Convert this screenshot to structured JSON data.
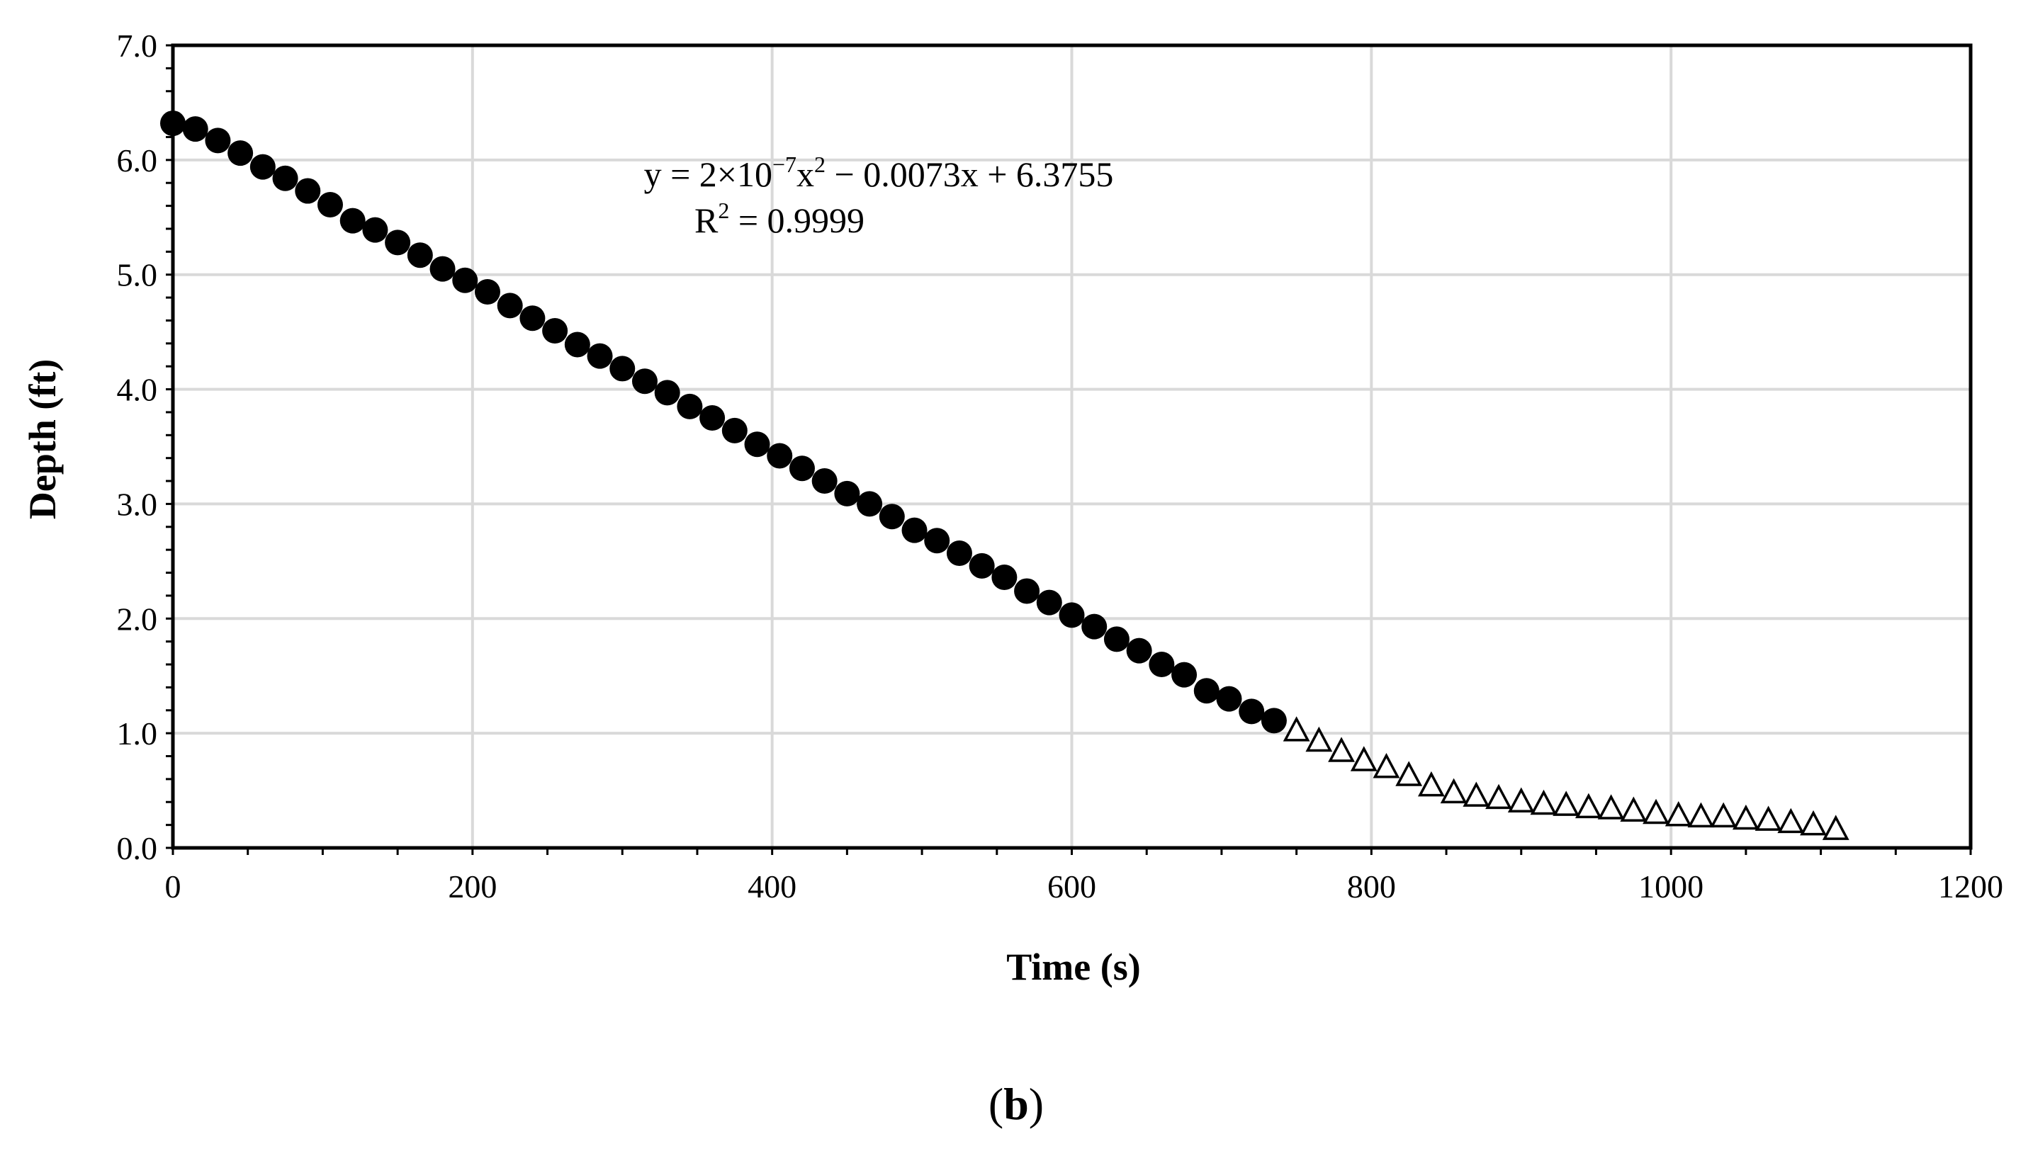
{
  "chart_data": {
    "type": "scatter",
    "xlabel": "Time (s)",
    "ylabel": "Depth (ft)",
    "xlim": [
      0,
      1200
    ],
    "ylim": [
      0,
      7
    ],
    "xticks": [
      "0",
      "200",
      "400",
      "600",
      "800",
      "1000",
      "1200"
    ],
    "yticks": [
      "0.0",
      "1.0",
      "2.0",
      "3.0",
      "4.0",
      "5.0",
      "6.0",
      "7.0"
    ],
    "grid": true,
    "legend": "none",
    "trendline_annotation": {
      "equation_prefix": "y = 2×10",
      "equation_exp": "−7",
      "equation_mid": "x",
      "equation_exp2": "2",
      "equation_suffix": " − 0.0073x + 6.3755",
      "r2_prefix": "R",
      "r2_exp": "2",
      "r2_suffix": " = 0.9999"
    },
    "series": [
      {
        "marker": "filled-circle",
        "color": "#000000",
        "points": [
          [
            0,
            6.32
          ],
          [
            15,
            6.27
          ],
          [
            30,
            6.17
          ],
          [
            45,
            6.06
          ],
          [
            60,
            5.94
          ],
          [
            75,
            5.84
          ],
          [
            90,
            5.73
          ],
          [
            105,
            5.61
          ],
          [
            120,
            5.47
          ],
          [
            135,
            5.39
          ],
          [
            150,
            5.28
          ],
          [
            165,
            5.17
          ],
          [
            180,
            5.05
          ],
          [
            195,
            4.95
          ],
          [
            210,
            4.85
          ],
          [
            225,
            4.73
          ],
          [
            240,
            4.62
          ],
          [
            255,
            4.51
          ],
          [
            270,
            4.39
          ],
          [
            285,
            4.29
          ],
          [
            300,
            4.18
          ],
          [
            315,
            4.07
          ],
          [
            330,
            3.97
          ],
          [
            345,
            3.85
          ],
          [
            360,
            3.75
          ],
          [
            375,
            3.64
          ],
          [
            390,
            3.52
          ],
          [
            405,
            3.42
          ],
          [
            420,
            3.31
          ],
          [
            435,
            3.2
          ],
          [
            450,
            3.09
          ],
          [
            465,
            3.0
          ],
          [
            480,
            2.89
          ],
          [
            495,
            2.77
          ],
          [
            510,
            2.68
          ],
          [
            525,
            2.57
          ],
          [
            540,
            2.46
          ],
          [
            555,
            2.36
          ],
          [
            570,
            2.24
          ],
          [
            585,
            2.14
          ],
          [
            600,
            2.03
          ],
          [
            615,
            1.93
          ],
          [
            630,
            1.82
          ],
          [
            645,
            1.72
          ],
          [
            660,
            1.6
          ],
          [
            675,
            1.51
          ],
          [
            690,
            1.37
          ],
          [
            705,
            1.3
          ],
          [
            720,
            1.19
          ],
          [
            735,
            1.11
          ]
        ]
      },
      {
        "marker": "open-triangle",
        "color": "#000000",
        "points": [
          [
            750,
            1.01
          ],
          [
            765,
            0.92
          ],
          [
            780,
            0.83
          ],
          [
            795,
            0.75
          ],
          [
            810,
            0.69
          ],
          [
            825,
            0.62
          ],
          [
            840,
            0.53
          ],
          [
            855,
            0.47
          ],
          [
            870,
            0.44
          ],
          [
            885,
            0.42
          ],
          [
            900,
            0.39
          ],
          [
            915,
            0.37
          ],
          [
            930,
            0.36
          ],
          [
            945,
            0.34
          ],
          [
            960,
            0.33
          ],
          [
            975,
            0.31
          ],
          [
            990,
            0.29
          ],
          [
            1005,
            0.27
          ],
          [
            1020,
            0.26
          ],
          [
            1035,
            0.26
          ],
          [
            1050,
            0.24
          ],
          [
            1065,
            0.23
          ],
          [
            1080,
            0.21
          ],
          [
            1095,
            0.19
          ],
          [
            1110,
            0.15
          ]
        ]
      }
    ]
  },
  "figure": {
    "panel_open": "(",
    "panel_letter": "b",
    "panel_close": ")"
  }
}
